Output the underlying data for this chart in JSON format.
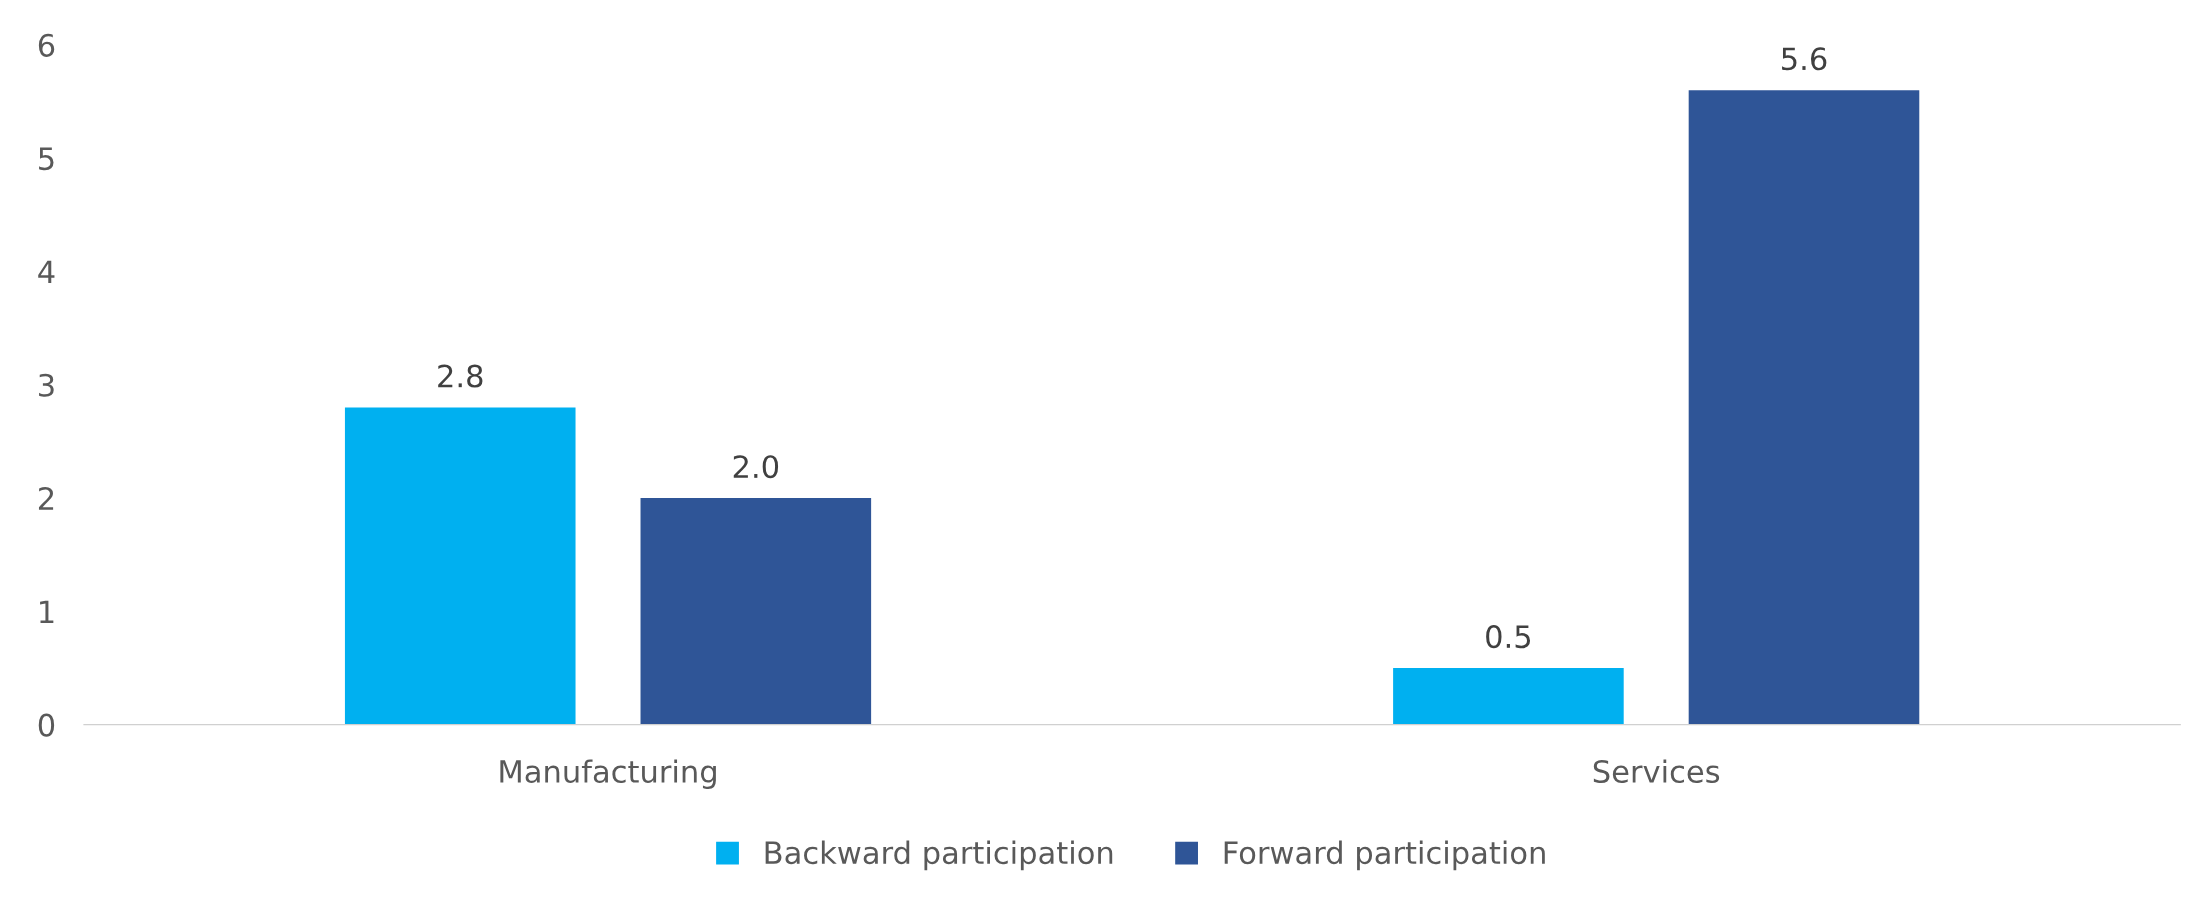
{
  "chart_data": {
    "type": "bar",
    "categories": [
      "Manufacturing",
      "Services"
    ],
    "series": [
      {
        "name": "Backward participation",
        "color": "#00b0f0",
        "values": [
          2.8,
          0.5
        ],
        "value_labels": [
          "2.8",
          "0.5"
        ]
      },
      {
        "name": "Forward participation",
        "color": "#2f5597",
        "values": [
          2.0,
          5.6
        ],
        "value_labels": [
          "2.0",
          "5.6"
        ]
      }
    ],
    "ylim": [
      0,
      6
    ],
    "yticks": [
      0,
      1,
      2,
      3,
      4,
      5,
      6
    ],
    "grid": false,
    "legend": "bottom"
  }
}
